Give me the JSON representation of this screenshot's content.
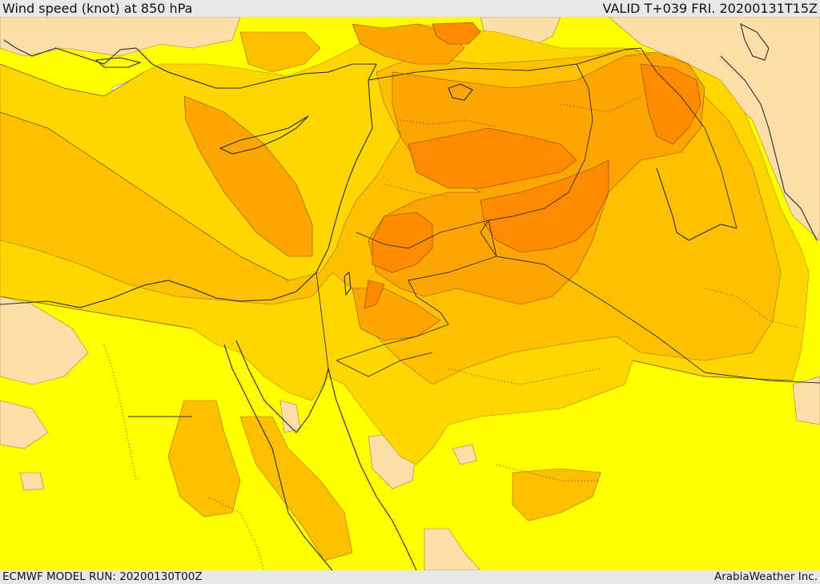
{
  "header": {
    "title": "Wind speed (knot) at 850 hPa",
    "valid": "VALID T+039 FRI. 20200131T15Z"
  },
  "footer": {
    "model_run": "ECMWF MODEL RUN: 20200130T00Z",
    "credit": "ArabiaWeather Inc."
  },
  "colors": {
    "yellow": "#ffff00",
    "light_orange": "#ffd700",
    "orange": "#ffc000",
    "dark_orange": "#ffa500",
    "red_orange": "#ff8c00",
    "peach": "#fcdfa8",
    "white": "#ffffff",
    "line": "#2b2b2b"
  }
}
